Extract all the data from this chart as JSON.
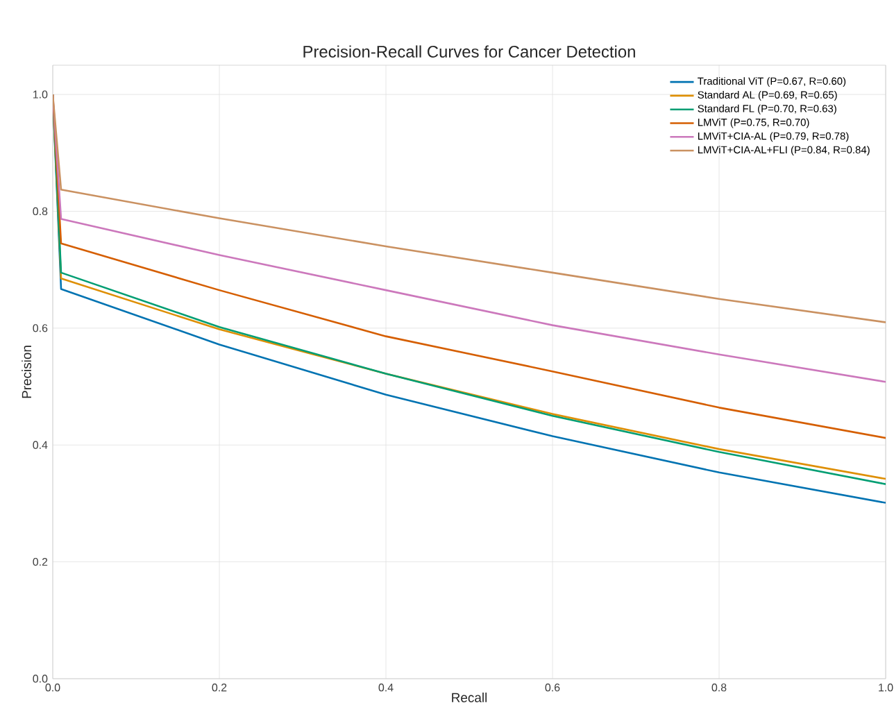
{
  "chart_data": {
    "type": "line",
    "title": "Precision-Recall Curves for Cancer Detection",
    "xlabel": "Recall",
    "ylabel": "Precision",
    "x": [
      0,
      0.01,
      0.2,
      0.4,
      0.6,
      0.8,
      1.0
    ],
    "series": [
      {
        "name": "Traditional ViT (P=0.67, R=0.60)",
        "color": "#0173b2",
        "values": [
          1.0,
          0.667,
          0.572,
          0.486,
          0.415,
          0.353,
          0.301
        ]
      },
      {
        "name": "Standard AL (P=0.69, R=0.65)",
        "color": "#de8f05",
        "values": [
          1.0,
          0.685,
          0.598,
          0.522,
          0.453,
          0.393,
          0.342
        ]
      },
      {
        "name": "Standard FL (P=0.70, R=0.63)",
        "color": "#029e73",
        "values": [
          1.0,
          0.695,
          0.602,
          0.522,
          0.45,
          0.388,
          0.333
        ]
      },
      {
        "name": "LMViT (P=0.75, R=0.70)",
        "color": "#d55e00",
        "values": [
          1.0,
          0.745,
          0.665,
          0.586,
          0.526,
          0.464,
          0.412
        ]
      },
      {
        "name": "LMViT+CIA-AL (P=0.79, R=0.78)",
        "color": "#cc78bc",
        "values": [
          1.0,
          0.787,
          0.725,
          0.665,
          0.605,
          0.555,
          0.508
        ]
      },
      {
        "name": "LMViT+CIA-AL+FLI (P=0.84, R=0.84)",
        "color": "#ca9161",
        "values": [
          1.0,
          0.837,
          0.788,
          0.74,
          0.695,
          0.65,
          0.61
        ]
      }
    ],
    "xlim": [
      0,
      1
    ],
    "ylim": [
      0,
      1.05
    ],
    "xticks": [
      {
        "value": 0,
        "label": "0.0"
      },
      0.2,
      0.4,
      0.6,
      0.8,
      {
        "value": 1,
        "label": "1.0"
      }
    ],
    "yticks": [
      {
        "value": 0,
        "label": "0.0"
      },
      0.2,
      0.4,
      0.6,
      0.8,
      {
        "value": 1,
        "label": "1.0"
      }
    ],
    "grid": true,
    "legend": "top right",
    "marker": "none",
    "line_style": "solid"
  }
}
